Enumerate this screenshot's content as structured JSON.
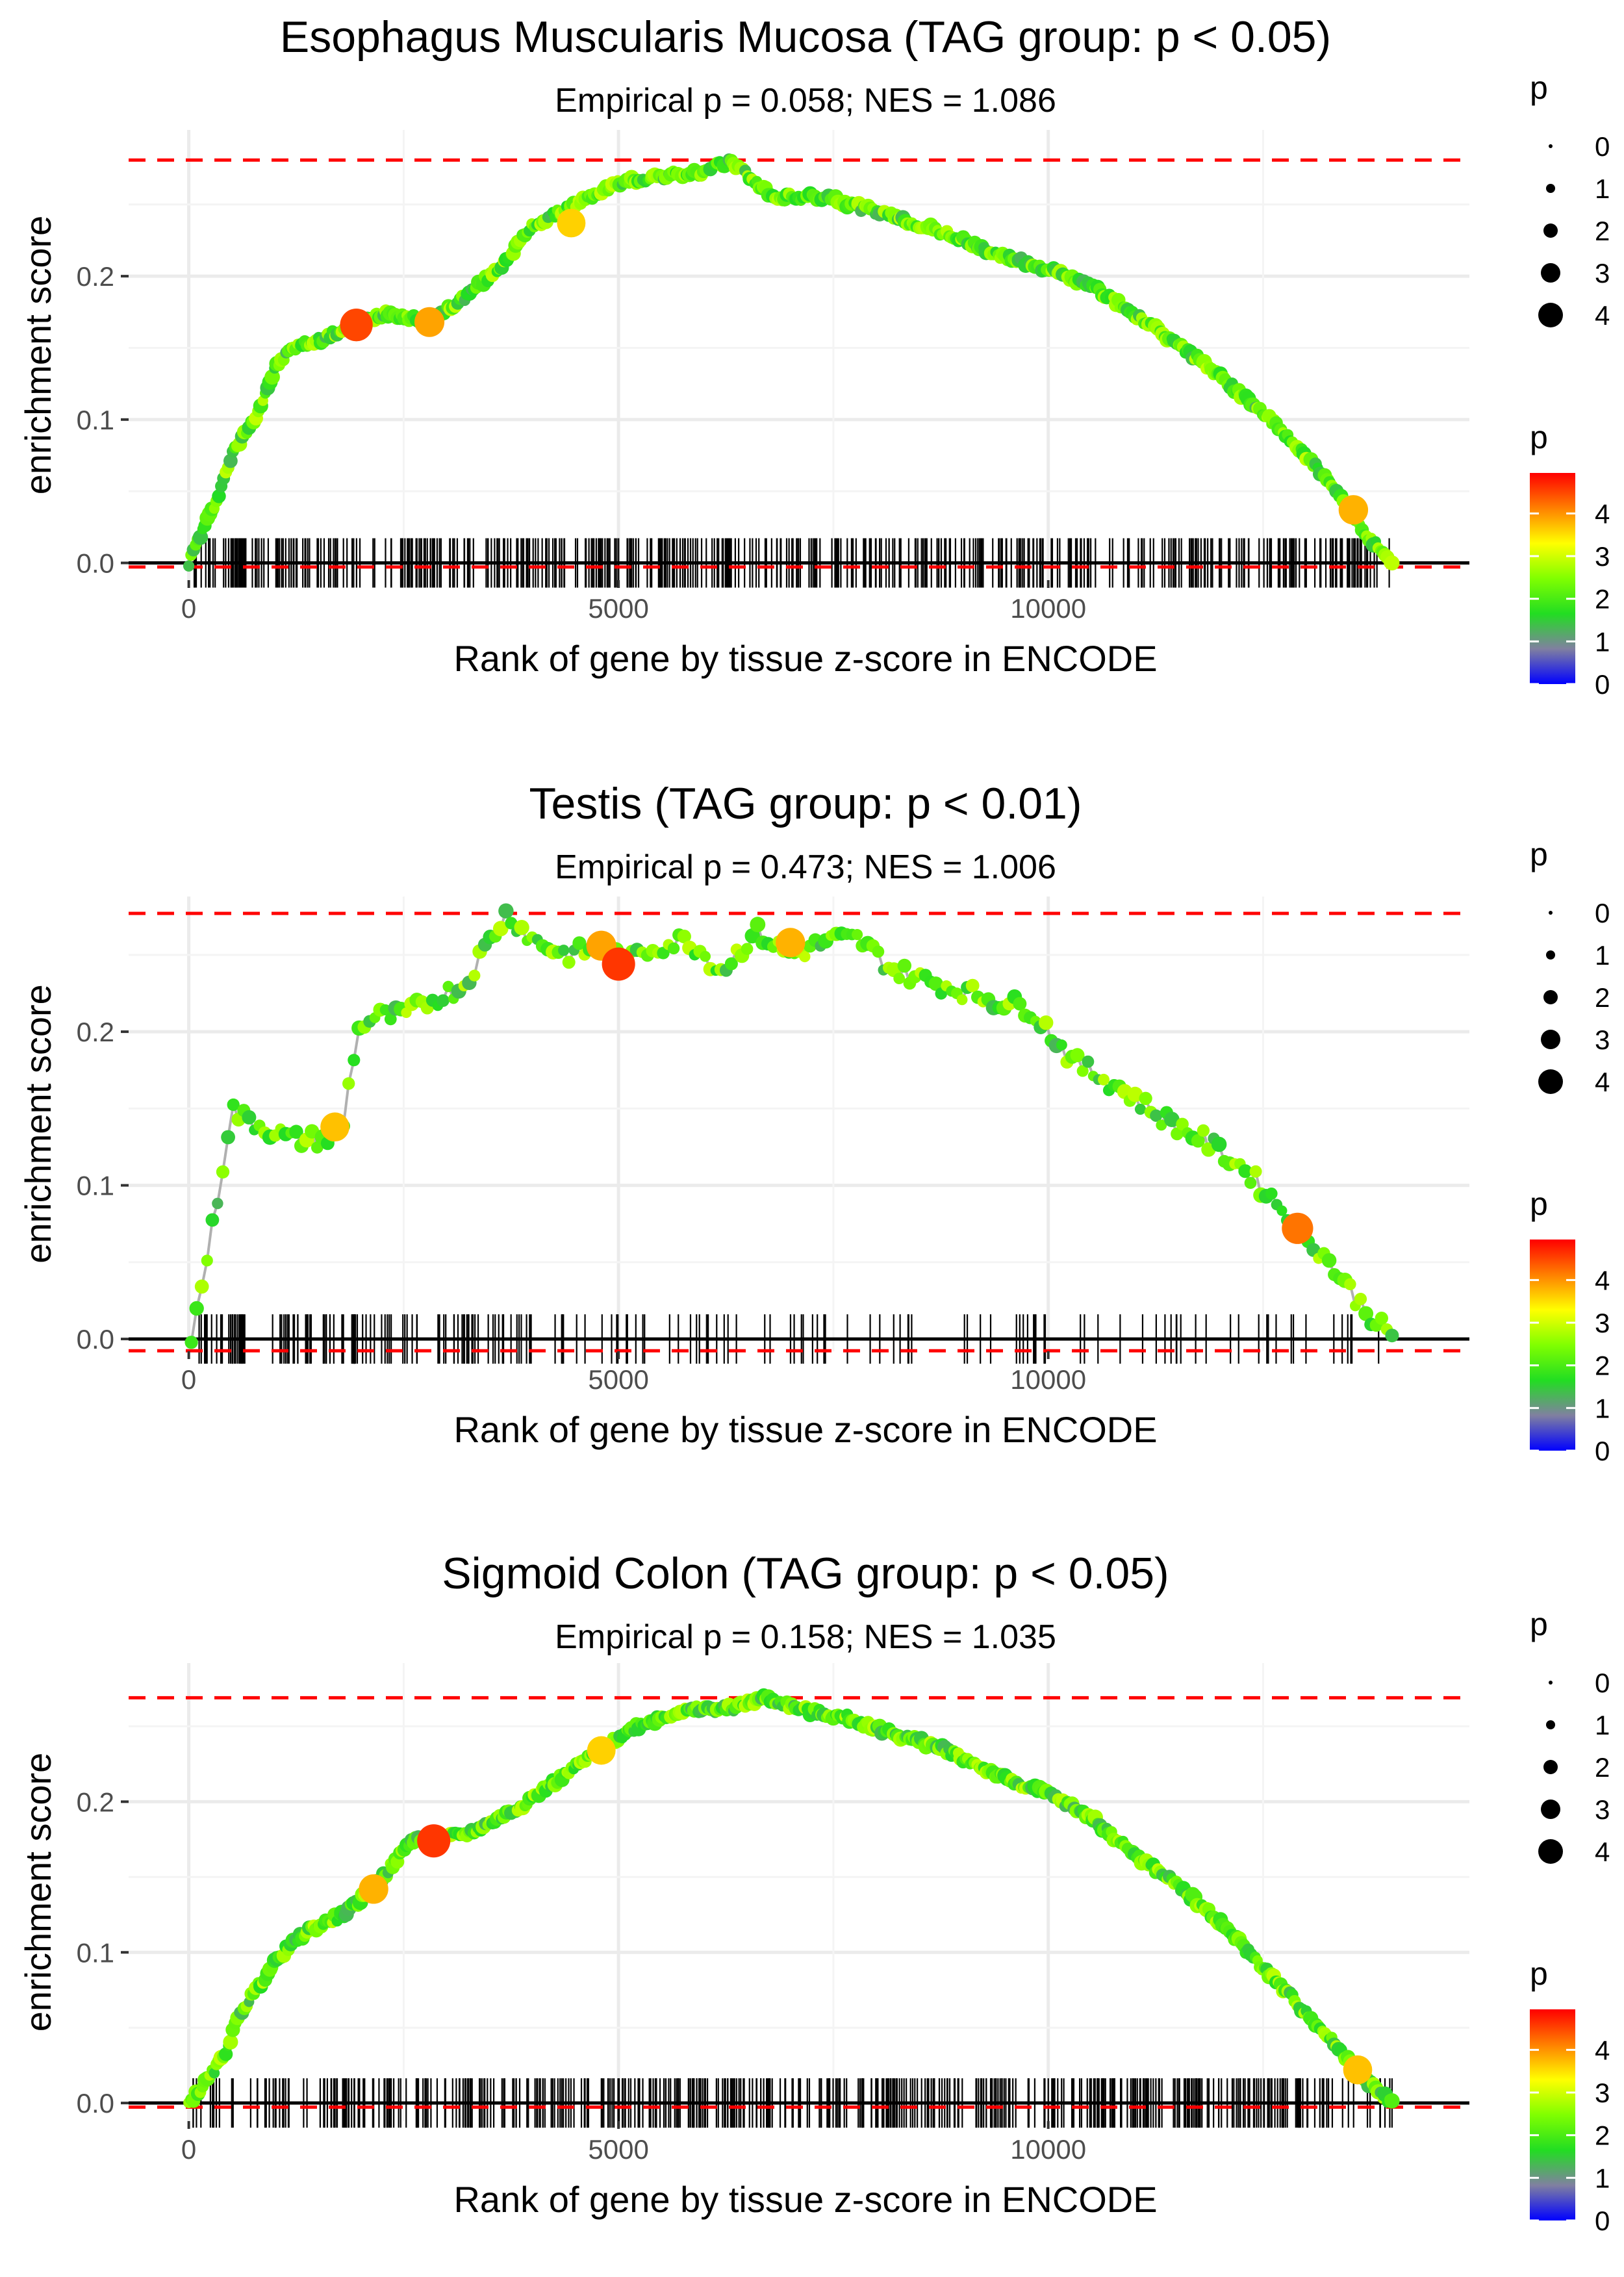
{
  "chart_data": [
    {
      "type": "line",
      "title": "Esophagus Muscularis Mucosa (TAG group: p < 0.05)",
      "subtitle": "Empirical p = 0.058; NES = 1.086",
      "xlabel": "Rank of gene by tissue z-score in ENCODE",
      "ylabel": "enrichment score",
      "xlim": [
        -700,
        14900
      ],
      "ylim": [
        -0.012,
        0.302
      ],
      "x_ticks": [
        0,
        5000,
        10000
      ],
      "x_tick_labels": [
        "0",
        "5000",
        "10000"
      ],
      "y_ticks": [
        0.0,
        0.1,
        0.2
      ],
      "y_tick_labels": [
        "0.0",
        "0.1",
        "0.2"
      ],
      "max_es": 0.281,
      "min_es": -0.001,
      "curve": [
        [
          0,
          0
        ],
        [
          100,
          0.015
        ],
        [
          300,
          0.04
        ],
        [
          500,
          0.075
        ],
        [
          800,
          0.105
        ],
        [
          1000,
          0.135
        ],
        [
          1200,
          0.15
        ],
        [
          1500,
          0.155
        ],
        [
          1900,
          0.165
        ],
        [
          2300,
          0.175
        ],
        [
          2800,
          0.168
        ],
        [
          3200,
          0.185
        ],
        [
          3600,
          0.205
        ],
        [
          4000,
          0.235
        ],
        [
          4500,
          0.25
        ],
        [
          5000,
          0.265
        ],
        [
          5500,
          0.27
        ],
        [
          6000,
          0.272
        ],
        [
          6300,
          0.281
        ],
        [
          6800,
          0.255
        ],
        [
          7400,
          0.255
        ],
        [
          8000,
          0.245
        ],
        [
          8800,
          0.23
        ],
        [
          9400,
          0.215
        ],
        [
          10000,
          0.205
        ],
        [
          10600,
          0.19
        ],
        [
          11200,
          0.165
        ],
        [
          11800,
          0.14
        ],
        [
          12400,
          0.11
        ],
        [
          13000,
          0.075
        ],
        [
          13400,
          0.045
        ],
        [
          13700,
          0.02
        ],
        [
          14000,
          0.0
        ]
      ],
      "hits": {
        "density": "dense",
        "xmin": 50,
        "xmax": 14000,
        "count": 480
      },
      "highlights": [
        {
          "x": 1950,
          "y": 0.166,
          "p": 4.5
        },
        {
          "x": 2800,
          "y": 0.168,
          "p": 3.9
        },
        {
          "x": 4450,
          "y": 0.237,
          "p": 3.6
        },
        {
          "x": 13550,
          "y": 0.037,
          "p": 3.8
        }
      ],
      "legend": {
        "size_title": "p",
        "size_labels": [
          "0",
          "1",
          "2",
          "3",
          "4"
        ],
        "color_title": "p",
        "color_labels": [
          "4",
          "3",
          "2",
          "1",
          "0"
        ],
        "color_range": [
          0,
          4.95
        ]
      }
    },
    {
      "type": "line",
      "title": "Testis (TAG group: p < 0.01)",
      "subtitle": "Empirical p = 0.473; NES = 1.006",
      "xlabel": "Rank of gene by tissue z-score in ENCODE",
      "ylabel": "enrichment score",
      "xlim": [
        -700,
        14900
      ],
      "ylim": [
        -0.008,
        0.288
      ],
      "x_ticks": [
        0,
        5000,
        10000
      ],
      "x_tick_labels": [
        "0",
        "5000",
        "10000"
      ],
      "y_ticks": [
        0.0,
        0.1,
        0.2
      ],
      "y_tick_labels": [
        "0.0",
        "0.1",
        "0.2"
      ],
      "max_es": 0.277,
      "min_es": -0.006,
      "curve": [
        [
          30,
          0.0
        ],
        [
          100,
          0.02
        ],
        [
          200,
          0.05
        ],
        [
          300,
          0.08
        ],
        [
          400,
          0.115
        ],
        [
          500,
          0.15
        ],
        [
          600,
          0.145
        ],
        [
          800,
          0.14
        ],
        [
          1000,
          0.135
        ],
        [
          1200,
          0.13
        ],
        [
          1400,
          0.13
        ],
        [
          1700,
          0.13
        ],
        [
          1800,
          0.14
        ],
        [
          1900,
          0.18
        ],
        [
          2000,
          0.205
        ],
        [
          2200,
          0.21
        ],
        [
          2500,
          0.21
        ],
        [
          2800,
          0.22
        ],
        [
          3200,
          0.23
        ],
        [
          3400,
          0.25
        ],
        [
          3700,
          0.277
        ],
        [
          4000,
          0.26
        ],
        [
          4400,
          0.25
        ],
        [
          4800,
          0.255
        ],
        [
          5100,
          0.245
        ],
        [
          5400,
          0.255
        ],
        [
          5800,
          0.26
        ],
        [
          6200,
          0.24
        ],
        [
          6600,
          0.265
        ],
        [
          7000,
          0.25
        ],
        [
          7500,
          0.26
        ],
        [
          7800,
          0.26
        ],
        [
          8200,
          0.24
        ],
        [
          8800,
          0.23
        ],
        [
          9400,
          0.22
        ],
        [
          9800,
          0.215
        ],
        [
          10300,
          0.18
        ],
        [
          10800,
          0.165
        ],
        [
          11300,
          0.145
        ],
        [
          11800,
          0.13
        ],
        [
          12300,
          0.11
        ],
        [
          12800,
          0.08
        ],
        [
          13200,
          0.055
        ],
        [
          13600,
          0.025
        ],
        [
          14000,
          0.0
        ]
      ],
      "hits": {
        "density": "sparse",
        "xmin": 50,
        "xmax": 13900,
        "count": 190
      },
      "highlights": [
        {
          "x": 1700,
          "y": 0.138,
          "p": 3.7
        },
        {
          "x": 4800,
          "y": 0.256,
          "p": 3.9
        },
        {
          "x": 5000,
          "y": 0.244,
          "p": 4.6
        },
        {
          "x": 7000,
          "y": 0.258,
          "p": 3.8
        },
        {
          "x": 12900,
          "y": 0.072,
          "p": 4.2
        }
      ],
      "legend": {
        "size_title": "p",
        "size_labels": [
          "0",
          "1",
          "2",
          "3",
          "4"
        ],
        "color_title": "p",
        "color_labels": [
          "4",
          "3",
          "2",
          "1",
          "0"
        ],
        "color_range": [
          0,
          4.95
        ]
      }
    },
    {
      "type": "line",
      "title": "Sigmoid Colon (TAG group: p < 0.05)",
      "subtitle": "Empirical p = 0.158; NES = 1.035",
      "xlabel": "Rank of gene by tissue z-score in ENCODE",
      "ylabel": "enrichment score",
      "xlim": [
        -700,
        14900
      ],
      "ylim": [
        -0.012,
        0.292
      ],
      "x_ticks": [
        0,
        5000,
        10000
      ],
      "x_tick_labels": [
        "0",
        "5000",
        "10000"
      ],
      "y_ticks": [
        0.0,
        0.1,
        0.2
      ],
      "y_tick_labels": [
        "0.0",
        "0.1",
        "0.2"
      ],
      "max_es": 0.269,
      "min_es": -0.001,
      "curve": [
        [
          0,
          0
        ],
        [
          150,
          0.01
        ],
        [
          400,
          0.03
        ],
        [
          600,
          0.06
        ],
        [
          900,
          0.085
        ],
        [
          1100,
          0.1
        ],
        [
          1400,
          0.115
        ],
        [
          1800,
          0.125
        ],
        [
          2100,
          0.14
        ],
        [
          2400,
          0.16
        ],
        [
          2600,
          0.175
        ],
        [
          2900,
          0.175
        ],
        [
          3300,
          0.18
        ],
        [
          3800,
          0.195
        ],
        [
          4300,
          0.215
        ],
        [
          4800,
          0.235
        ],
        [
          5200,
          0.25
        ],
        [
          5700,
          0.26
        ],
        [
          6300,
          0.262
        ],
        [
          6700,
          0.269
        ],
        [
          7200,
          0.26
        ],
        [
          7700,
          0.255
        ],
        [
          8200,
          0.245
        ],
        [
          8800,
          0.235
        ],
        [
          9500,
          0.215
        ],
        [
          10000,
          0.205
        ],
        [
          10500,
          0.19
        ],
        [
          11000,
          0.165
        ],
        [
          11500,
          0.145
        ],
        [
          12000,
          0.12
        ],
        [
          12500,
          0.09
        ],
        [
          13000,
          0.06
        ],
        [
          13400,
          0.035
        ],
        [
          13700,
          0.015
        ],
        [
          14000,
          0.0
        ]
      ],
      "hits": {
        "density": "dense",
        "xmin": 50,
        "xmax": 14000,
        "count": 480
      },
      "highlights": [
        {
          "x": 2150,
          "y": 0.142,
          "p": 3.8
        },
        {
          "x": 2850,
          "y": 0.174,
          "p": 4.6
        },
        {
          "x": 4800,
          "y": 0.234,
          "p": 3.6
        },
        {
          "x": 13600,
          "y": 0.022,
          "p": 3.7
        }
      ],
      "legend": {
        "size_title": "p",
        "size_labels": [
          "0",
          "1",
          "2",
          "3",
          "4"
        ],
        "color_title": "p",
        "color_labels": [
          "4",
          "3",
          "2",
          "1",
          "0"
        ],
        "color_range": [
          0,
          4.95
        ]
      }
    }
  ],
  "colors": {
    "max_line": "#ff0000",
    "zero_line": "#000000",
    "grid": "#ebebeb",
    "curve": "#b0b0b0",
    "text": "#000000",
    "tick_text": "#4d4d4d",
    "scale": [
      "#0000ff",
      "#8080a0",
      "#22dd22",
      "#80ff00",
      "#ffff00",
      "#ff8000",
      "#ff0000"
    ]
  }
}
